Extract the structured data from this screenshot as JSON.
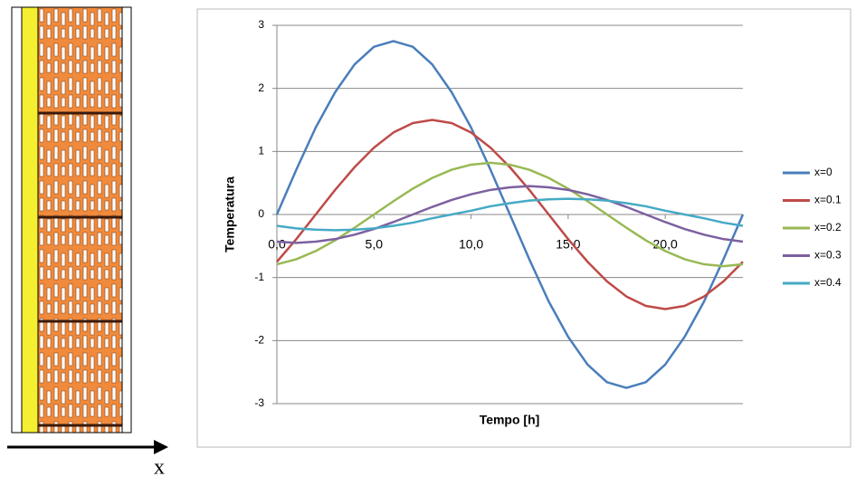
{
  "wall_diagram": {
    "axis_label": "x"
  },
  "chart_data": {
    "type": "line",
    "x_label": "Tempo [h]",
    "y_label": "Temperatura",
    "x": [
      0,
      1,
      2,
      3,
      4,
      5,
      6,
      7,
      8,
      9,
      10,
      11,
      12,
      13,
      14,
      15,
      16,
      17,
      18,
      19,
      20,
      21,
      22,
      23,
      24
    ],
    "series": [
      {
        "name": "x=0",
        "color": "#4a7ebb",
        "values": [
          0,
          0.71,
          1.38,
          1.94,
          2.38,
          2.66,
          2.75,
          2.66,
          2.38,
          1.94,
          1.38,
          0.71,
          0,
          -0.71,
          -1.38,
          -1.94,
          -2.38,
          -2.66,
          -2.75,
          -2.66,
          -2.38,
          -1.94,
          -1.38,
          -0.71,
          0
        ]
      },
      {
        "name": "x=0.1",
        "color": "#be4b48",
        "values": [
          -0.75,
          -0.39,
          0,
          0.39,
          0.75,
          1.06,
          1.3,
          1.45,
          1.5,
          1.45,
          1.3,
          1.06,
          0.75,
          0.39,
          0,
          -0.39,
          -0.75,
          -1.06,
          -1.3,
          -1.45,
          -1.5,
          -1.45,
          -1.3,
          -1.06,
          -0.75
        ]
      },
      {
        "name": "x=0.2",
        "color": "#98b954",
        "values": [
          -0.79,
          -0.71,
          -0.58,
          -0.41,
          -0.21,
          0,
          0.21,
          0.41,
          0.58,
          0.71,
          0.79,
          0.82,
          0.79,
          0.71,
          0.58,
          0.41,
          0.21,
          0,
          -0.21,
          -0.41,
          -0.58,
          -0.71,
          -0.79,
          -0.82,
          -0.79
        ]
      },
      {
        "name": "x=0.3",
        "color": "#7d60a0",
        "values": [
          -0.43,
          -0.45,
          -0.43,
          -0.39,
          -0.32,
          -0.23,
          -0.12,
          0,
          0.12,
          0.23,
          0.32,
          0.39,
          0.43,
          0.45,
          0.43,
          0.39,
          0.32,
          0.23,
          0.12,
          0,
          -0.12,
          -0.23,
          -0.32,
          -0.39,
          -0.43
        ]
      },
      {
        "name": "x=0.4",
        "color": "#46aac5",
        "values": [
          -0.18,
          -0.22,
          -0.24,
          -0.25,
          -0.24,
          -0.22,
          -0.18,
          -0.13,
          -0.06,
          0,
          0.06,
          0.13,
          0.18,
          0.22,
          0.24,
          0.25,
          0.24,
          0.22,
          0.18,
          0.13,
          0.06,
          0,
          -0.06,
          -0.13,
          -0.18
        ]
      }
    ],
    "xlim": [
      0,
      24
    ],
    "xticks": [
      {
        "value": 0,
        "label": "0,0"
      },
      {
        "value": 5,
        "label": "5,0"
      },
      {
        "value": 10,
        "label": "10,0"
      },
      {
        "value": 15,
        "label": "15,0"
      },
      {
        "value": 20,
        "label": "20,0"
      }
    ],
    "ylim": [
      -3,
      3
    ],
    "yticks": [
      -3,
      -2,
      -1,
      0,
      1,
      2,
      3
    ],
    "grid": true,
    "legend": "right"
  }
}
